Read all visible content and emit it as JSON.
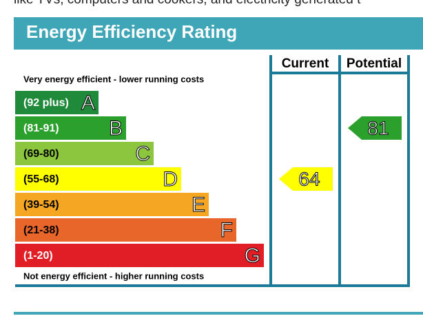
{
  "top_text": "like TVs, computers and cookers, and electricity generated t",
  "title": "Energy Efficiency Rating",
  "headers": [
    "Current",
    "Potential"
  ],
  "top_label": "Very energy efficient - lower running costs",
  "bottom_label": "Not energy efficient - higher running costs",
  "bands": [
    {
      "range": "(92 plus)",
      "letter": "A",
      "color": "#1f8a3a"
    },
    {
      "range": "(81-91)",
      "letter": "B",
      "color": "#2ba02d"
    },
    {
      "range": "(69-80)",
      "letter": "C",
      "color": "#8cc63f"
    },
    {
      "range": "(55-68)",
      "letter": "D",
      "color": "#ffff00"
    },
    {
      "range": "(39-54)",
      "letter": "E",
      "color": "#f5a623"
    },
    {
      "range": "(21-38)",
      "letter": "F",
      "color": "#e8662a"
    },
    {
      "range": "(1-20)",
      "letter": "G",
      "color": "#e11e26"
    }
  ],
  "current": {
    "value": 64
  },
  "potential": {
    "value": 81
  }
}
